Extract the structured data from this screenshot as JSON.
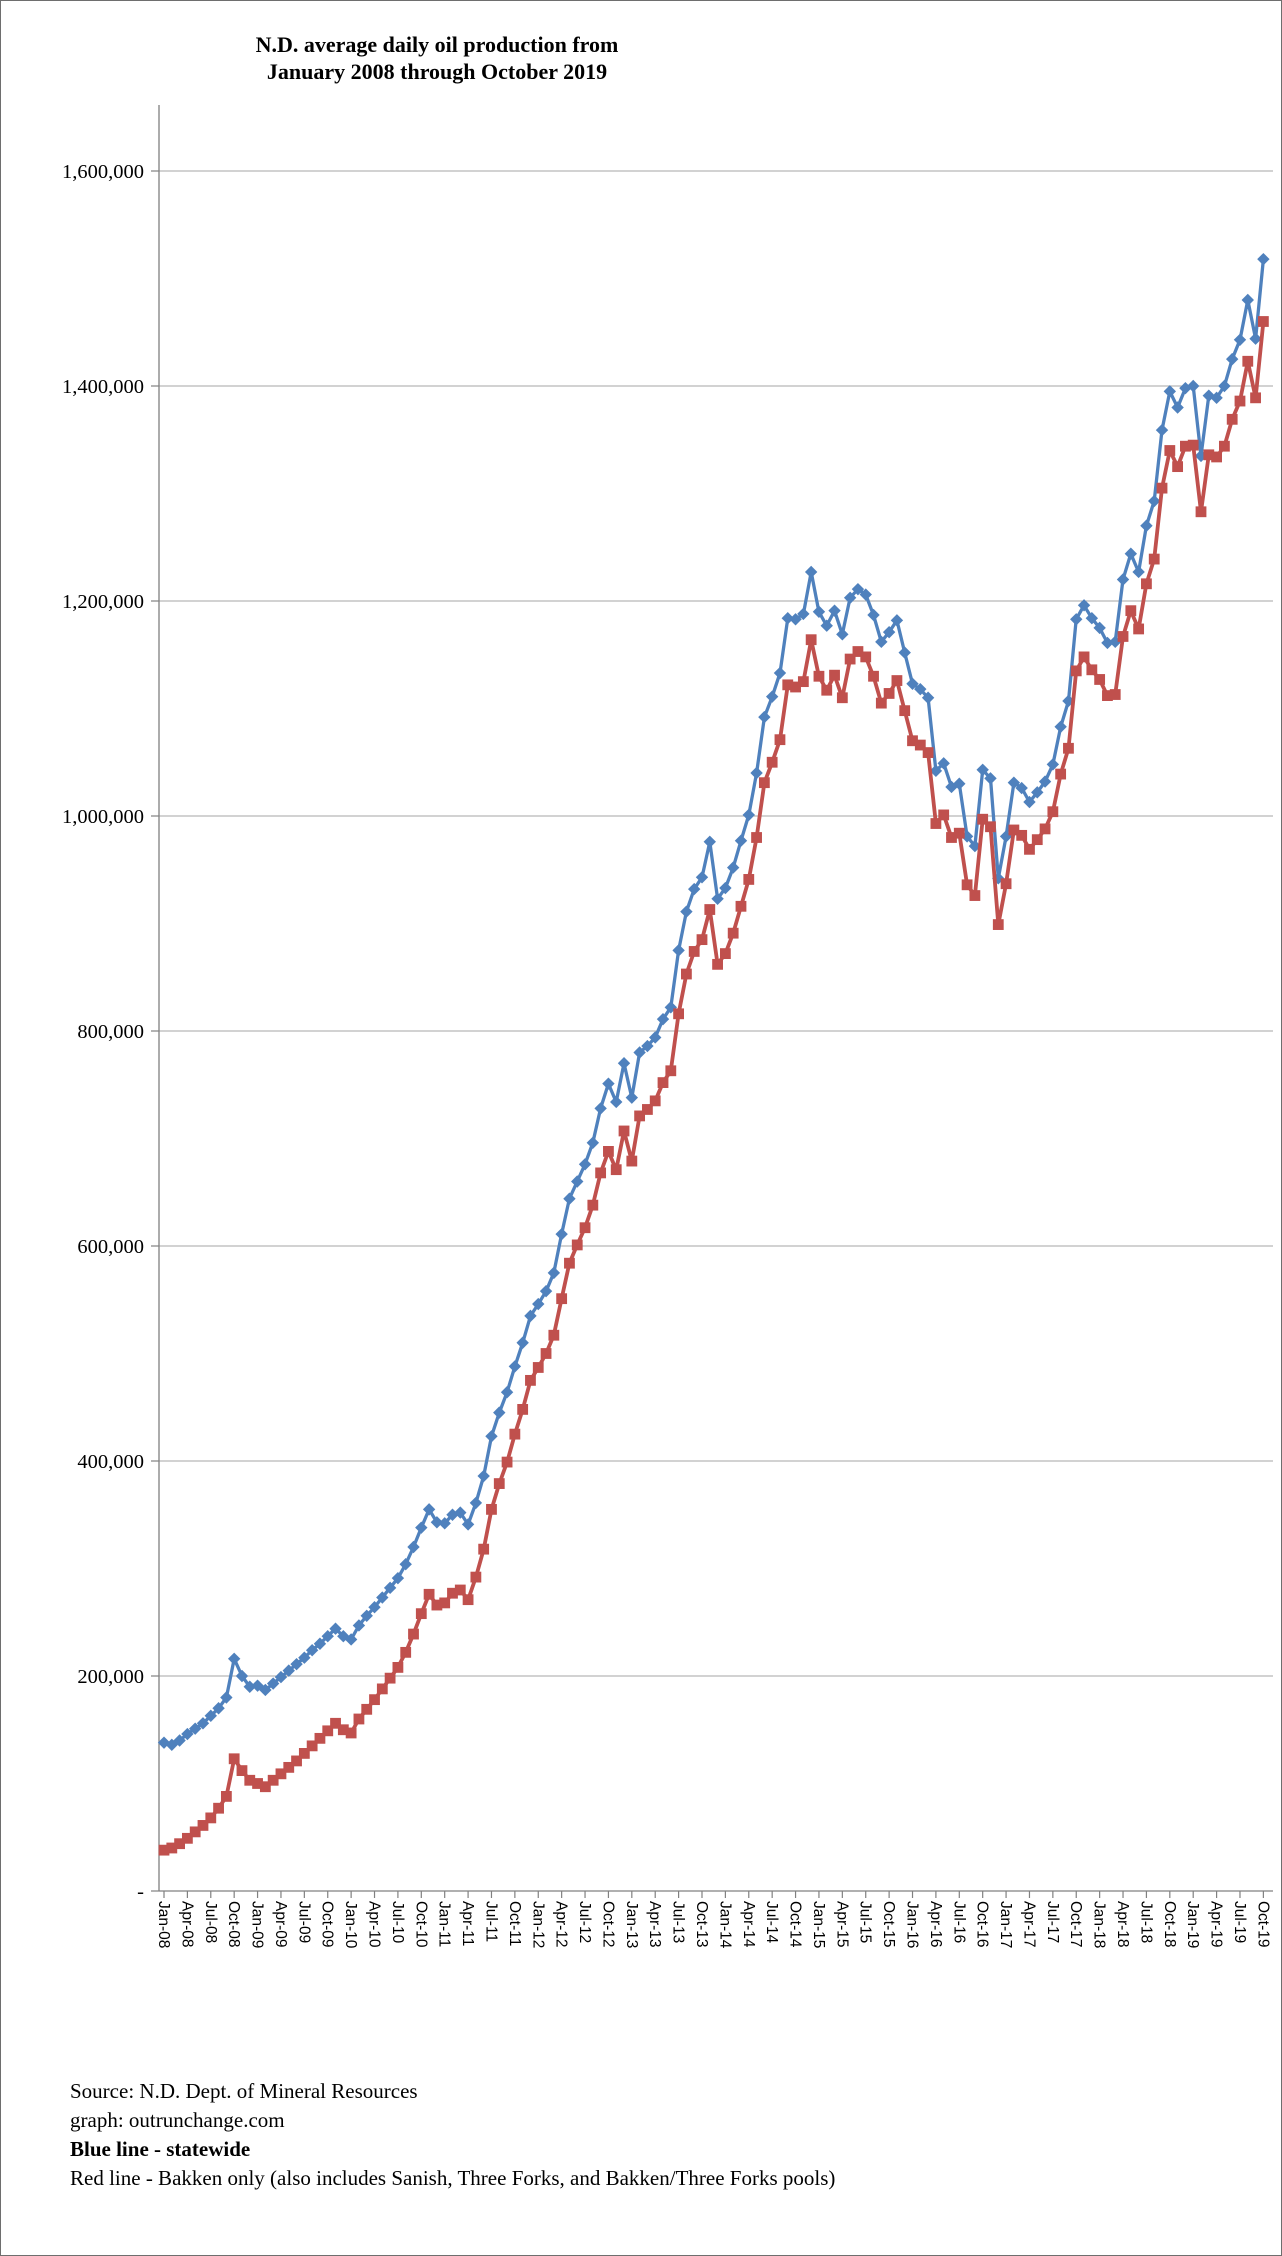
{
  "title": {
    "line1": "N.D. average daily oil production from",
    "line2": "January 2008 through October 2019"
  },
  "chart_data": {
    "type": "line",
    "x_start": "Jan-08",
    "x_end": "Oct-19",
    "x_interval": "monthly",
    "x_tick_labels": [
      "Jan-08",
      "Apr-08",
      "Jul-08",
      "Oct-08",
      "Jan-09",
      "Apr-09",
      "Jul-09",
      "Oct-09",
      "Jan-10",
      "Apr-10",
      "Jul-10",
      "Oct-10",
      "Jan-11",
      "Apr-11",
      "Jul-11",
      "Oct-11",
      "Jan-12",
      "Apr-12",
      "Jul-12",
      "Oct-12",
      "Jan-13",
      "Apr-13",
      "Jul-13",
      "Oct-13",
      "Jan-14",
      "Apr-14",
      "Jul-14",
      "Oct-14",
      "Jan-15",
      "Apr-15",
      "Jul-15",
      "Oct-15",
      "Jan-16",
      "Apr-16",
      "Jul-16",
      "Oct-16",
      "Jan-17",
      "Apr-17",
      "Jul-17",
      "Oct-17",
      "Jan-18",
      "Apr-18",
      "Jul-18",
      "Oct-18",
      "Jan-19",
      "Apr-19",
      "Jul-19",
      "Oct-19"
    ],
    "ylim": [
      0,
      1600000
    ],
    "ytick_step": 200000,
    "y_tick_labels": [
      "-",
      "200,000",
      "400,000",
      "600,000",
      "800,000",
      "1,000,000",
      "1,200,000",
      "1,400,000",
      "1,600,000"
    ],
    "grid": true,
    "legend_position": "below-as-text",
    "series": [
      {
        "name": "statewide",
        "color": "#4F81BD",
        "marker": "diamond",
        "values": [
          138000,
          136000,
          140000,
          146000,
          151000,
          156000,
          163000,
          170000,
          180000,
          216000,
          200000,
          190000,
          191000,
          187000,
          193000,
          199000,
          205000,
          211000,
          217000,
          224000,
          230000,
          237000,
          244000,
          237000,
          234000,
          247000,
          256000,
          264000,
          273000,
          282000,
          291000,
          304000,
          320000,
          338000,
          355000,
          343000,
          342000,
          350000,
          352000,
          341000,
          361000,
          386000,
          423000,
          445000,
          464000,
          488000,
          510000,
          535000,
          546000,
          558000,
          575000,
          611000,
          644000,
          660000,
          676000,
          696000,
          728000,
          751000,
          734000,
          770000,
          738000,
          780000,
          786000,
          794000,
          811000,
          822000,
          875000,
          911000,
          932000,
          943000,
          976000,
          923000,
          933000,
          952000,
          977000,
          1001000,
          1040000,
          1092000,
          1111000,
          1133000,
          1184000,
          1183000,
          1188000,
          1227000,
          1190000,
          1177000,
          1191000,
          1169000,
          1203000,
          1211000,
          1206000,
          1187000,
          1162000,
          1171000,
          1182000,
          1152000,
          1123000,
          1118000,
          1110000,
          1042000,
          1049000,
          1027000,
          1030000,
          981000,
          972000,
          1043000,
          1035000,
          942000,
          981000,
          1031000,
          1026000,
          1013000,
          1022000,
          1032000,
          1048000,
          1083000,
          1107000,
          1183000,
          1196000,
          1184000,
          1175000,
          1161000,
          1162000,
          1220000,
          1244000,
          1227000,
          1270000,
          1293000,
          1359000,
          1395000,
          1380000,
          1398000,
          1400000,
          1335000,
          1391000,
          1389000,
          1400000,
          1425000,
          1443000,
          1480000,
          1444000,
          1518000
        ]
      },
      {
        "name": "Bakken only",
        "color": "#C0504D",
        "marker": "square",
        "values": [
          38000,
          40000,
          44000,
          49000,
          55000,
          61000,
          68000,
          77000,
          88000,
          123000,
          112000,
          103000,
          100000,
          97000,
          103000,
          109000,
          115000,
          121000,
          128000,
          135000,
          142000,
          149000,
          156000,
          150000,
          147000,
          160000,
          169000,
          178000,
          188000,
          198000,
          208000,
          222000,
          239000,
          258000,
          276000,
          266000,
          268000,
          277000,
          280000,
          271000,
          292000,
          318000,
          355000,
          379000,
          399000,
          425000,
          448000,
          475000,
          487000,
          500000,
          517000,
          551000,
          584000,
          601000,
          617000,
          638000,
          668000,
          688000,
          671000,
          707000,
          679000,
          721000,
          727000,
          735000,
          752000,
          763000,
          816000,
          853000,
          874000,
          885000,
          913000,
          862000,
          872000,
          891000,
          916000,
          941000,
          980000,
          1031000,
          1050000,
          1071000,
          1122000,
          1120000,
          1125000,
          1164000,
          1130000,
          1117000,
          1131000,
          1110000,
          1146000,
          1153000,
          1148000,
          1130000,
          1105000,
          1114000,
          1126000,
          1098000,
          1070000,
          1066000,
          1059000,
          993000,
          1001000,
          980000,
          984000,
          936000,
          926000,
          997000,
          990000,
          899000,
          937000,
          987000,
          982000,
          969000,
          978000,
          988000,
          1004000,
          1039000,
          1063000,
          1135000,
          1148000,
          1136000,
          1127000,
          1112000,
          1113000,
          1167000,
          1191000,
          1174000,
          1216000,
          1239000,
          1305000,
          1340000,
          1325000,
          1344000,
          1345000,
          1283000,
          1336000,
          1334000,
          1344000,
          1369000,
          1386000,
          1423000,
          1389000,
          1460000
        ]
      }
    ],
    "colors": {
      "gridline": "#A6A6A6",
      "axis": "#808080",
      "statewide_blue": "#4F81BD",
      "bakken_red": "#C0504D",
      "legend_text_red": "#FF0000"
    }
  },
  "footer": {
    "source": "Source: N.D. Dept. of Mineral Resources",
    "credit": "graph: outrunchange.com",
    "legend_blue": "Blue line - statewide",
    "legend_red": "Red line - Bakken only",
    "legend_red_rest": " (also includes Sanish, Three Forks, and Bakken/Three Forks pools)"
  }
}
